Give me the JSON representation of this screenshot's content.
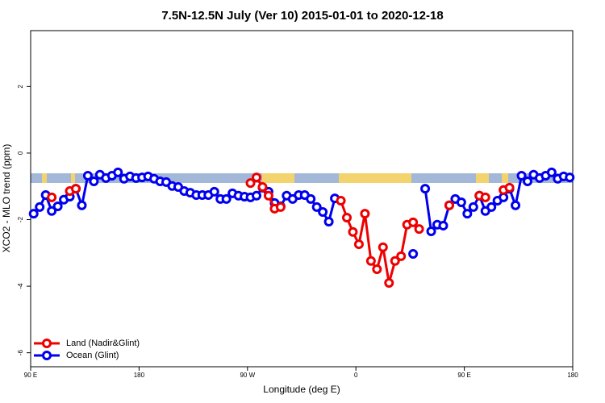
{
  "chart_data": {
    "type": "line",
    "title": "7.5N-12.5N July (Ver 10)   2015-01-01 to 2020-12-18",
    "xlabel": "Longitude (deg E)",
    "ylabel": "XCO2 - MLO trend (ppm)",
    "xlim": [
      90,
      540
    ],
    "ylim": [
      -6.42,
      3.68
    ],
    "xticks": [
      {
        "value": 90,
        "label": "90 E"
      },
      180,
      {
        "value": 270,
        "label": "90 W"
      },
      {
        "value": 360,
        "label": "0"
      },
      {
        "value": 450,
        "label": "90 E"
      },
      {
        "value": 540,
        "label": "180"
      }
    ],
    "yticks": [
      -6,
      -4,
      -2,
      0,
      2
    ],
    "legend": "bottomleft",
    "x": [
      92.5,
      97.5,
      102.5,
      107.5,
      112.5,
      117.5,
      122.5,
      127.5,
      132.5,
      137.5,
      142.5,
      147.5,
      152.5,
      157.5,
      162.5,
      167.5,
      172.5,
      177.5,
      182.5,
      187.5,
      192.5,
      197.5,
      202.5,
      207.5,
      212.5,
      217.5,
      222.5,
      227.5,
      232.5,
      237.5,
      242.5,
      247.5,
      252.5,
      257.5,
      262.5,
      267.5,
      272.5,
      277.5,
      282.5,
      287.5,
      292.5,
      297.5,
      302.5,
      307.5,
      312.5,
      317.5,
      322.5,
      327.5,
      332.5,
      337.5,
      342.5,
      347.5,
      352.5,
      357.5,
      362.5,
      367.5,
      372.5,
      377.5,
      382.5,
      387.5,
      392.5,
      397.5,
      402.5,
      407.5,
      412.5,
      417.5,
      422.5,
      427.5,
      432.5,
      437.5,
      442.5,
      447.5,
      452.5,
      457.5,
      462.5,
      467.5,
      472.5,
      477.5,
      482.5,
      487.5,
      492.5,
      497.5,
      502.5,
      507.5,
      512.5,
      517.5,
      522.5,
      527.5,
      532.5,
      537.5
    ],
    "series": [
      {
        "name": "Ocean (Glint)",
        "color": "#0000ee",
        "values": [
          -1.82,
          -1.62,
          -1.26,
          -1.74,
          -1.6,
          -1.4,
          -1.31,
          -1.07,
          -1.57,
          -0.68,
          -0.85,
          -0.65,
          -0.75,
          -0.68,
          -0.58,
          -0.77,
          -0.7,
          -0.75,
          -0.73,
          -0.7,
          -0.77,
          -0.85,
          -0.87,
          -0.99,
          -1.02,
          -1.14,
          -1.19,
          -1.26,
          -1.26,
          -1.26,
          -1.16,
          -1.38,
          -1.38,
          -1.21,
          -1.28,
          -1.31,
          -1.33,
          -1.28,
          -1.04,
          -1.16,
          -1.5,
          -1.6,
          -1.28,
          -1.38,
          -1.26,
          -1.26,
          -1.38,
          -1.62,
          -1.77,
          -2.06,
          -1.36,
          null,
          null,
          null,
          null,
          null,
          null,
          null,
          null,
          null,
          null,
          null,
          null,
          -3.03,
          null,
          -1.07,
          -2.35,
          -2.15,
          -2.18,
          -1.57,
          -1.38,
          -1.48,
          -1.82,
          -1.62,
          -1.28,
          -1.74,
          -1.62,
          -1.43,
          -1.33,
          -1.07,
          -1.57,
          -0.68,
          -0.85,
          -0.65,
          -0.75,
          -0.68,
          -0.58,
          -0.77,
          -0.7,
          -0.73
        ]
      },
      {
        "name": "Land (Nadir&Glint)",
        "color": "#ee0000",
        "values": [
          null,
          null,
          null,
          -1.33,
          null,
          null,
          -1.14,
          -1.07,
          null,
          null,
          null,
          null,
          null,
          null,
          null,
          null,
          null,
          null,
          null,
          null,
          null,
          null,
          null,
          null,
          null,
          null,
          null,
          null,
          null,
          null,
          null,
          null,
          null,
          null,
          null,
          null,
          -0.9,
          -0.73,
          -1.02,
          -1.28,
          -1.67,
          -1.62,
          null,
          null,
          null,
          null,
          null,
          null,
          null,
          null,
          null,
          -1.43,
          -1.94,
          -2.37,
          -2.74,
          -1.82,
          -3.24,
          -3.49,
          -2.83,
          -3.9,
          -3.24,
          -3.1,
          -2.15,
          -2.08,
          -2.28,
          null,
          null,
          null,
          null,
          -1.57,
          null,
          null,
          null,
          null,
          -1.28,
          -1.33,
          null,
          null,
          -1.11,
          -1.04,
          null,
          null,
          null,
          null,
          null,
          null,
          null,
          null,
          null,
          null
        ]
      }
    ]
  }
}
